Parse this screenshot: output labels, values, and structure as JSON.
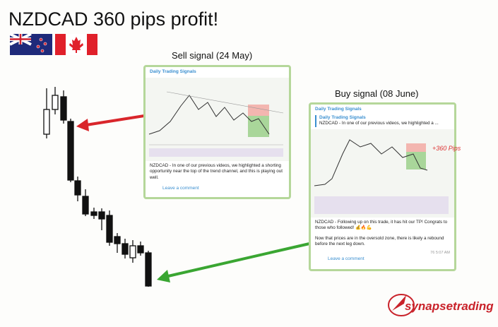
{
  "header": {
    "title": "NZDCAD 360 pips profit!"
  },
  "sell_signal": {
    "label": "Sell signal (24 May)",
    "channel": "Daily Trading Signals",
    "text": "NZDCAD - In one of our previous videos, we highlighted a shorting opportunity near the top of the trend channel, and this is playing out well.",
    "comment": "Leave a comment"
  },
  "buy_signal": {
    "label": "Buy signal (08 June)",
    "channel": "Daily Trading Signals",
    "reply_channel": "Daily Trading Signals",
    "reply_text": "NZDCAD - In one of our previous videos, we highlighted a ...",
    "annotation": "+360 Pips",
    "text_1": "NZDCAD - Following up on this trade, it has hit our TP! Congrats to those who followed! 💰🔥💪",
    "text_2": "Now that prices are in the oversold zone, there is likely a rebound before the next leg down.",
    "views": "76",
    "time": "5:07 AM",
    "comment": "Leave a comment"
  },
  "logo": "synapsetrading"
}
